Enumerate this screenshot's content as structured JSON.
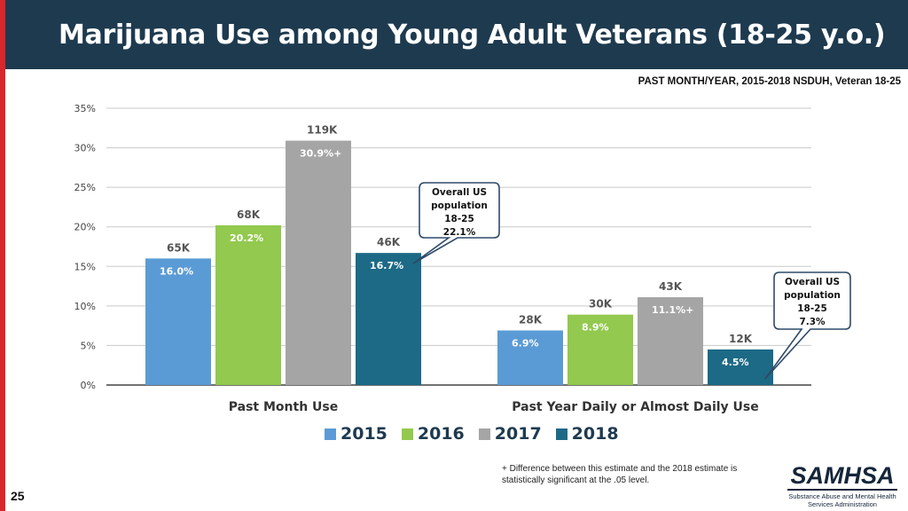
{
  "slide": {
    "title": "Marijuana Use among Young Adult Veterans (18-25 y.o.)",
    "source": "PAST MONTH/YEAR, 2015-2018 NSDUH, Veteran 18-25",
    "page_number": "25",
    "footnote": "+ Difference between this estimate and the 2018 estimate is statistically significant at the .05 level.",
    "logo": {
      "name": "SAMHSA",
      "subtitle_line1": "Substance Abuse and Mental Health",
      "subtitle_line2": "Services Administration"
    }
  },
  "colors": {
    "header": "#1e3a4f",
    "accent": "#d9262b",
    "2015": "#5b9bd5",
    "2016": "#92c94e",
    "2017": "#a5a5a5",
    "2018": "#1c6a86"
  },
  "chart_data": {
    "type": "bar",
    "title": "",
    "xlabel": "",
    "ylabel": "",
    "ylim": [
      0,
      35
    ],
    "y_ticks": [
      "0%",
      "5%",
      "10%",
      "15%",
      "20%",
      "25%",
      "30%",
      "35%"
    ],
    "categories": [
      "Past Month Use",
      "Past Year Daily or Almost Daily Use"
    ],
    "series": [
      {
        "name": "2015",
        "values": [
          16.0,
          6.9
        ],
        "labels": [
          "16.0%",
          "6.9%"
        ],
        "counts": [
          "65K",
          "28K"
        ]
      },
      {
        "name": "2016",
        "values": [
          20.2,
          8.9
        ],
        "labels": [
          "20.2%",
          "8.9%"
        ],
        "counts": [
          "68K",
          "30K"
        ]
      },
      {
        "name": "2017",
        "values": [
          30.9,
          11.1
        ],
        "labels": [
          "30.9%+",
          "11.1%+"
        ],
        "counts": [
          "119K",
          "43K"
        ]
      },
      {
        "name": "2018",
        "values": [
          16.7,
          4.5
        ],
        "labels": [
          "16.7%",
          "4.5%"
        ],
        "counts": [
          "46K",
          "12K"
        ]
      }
    ],
    "callouts": [
      {
        "text_lines": [
          "Overall US",
          "population",
          "18-25",
          "22.1%"
        ]
      },
      {
        "text_lines": [
          "Overall US",
          "population",
          "18-25",
          "7.3%"
        ]
      }
    ],
    "legend": "bottom"
  }
}
